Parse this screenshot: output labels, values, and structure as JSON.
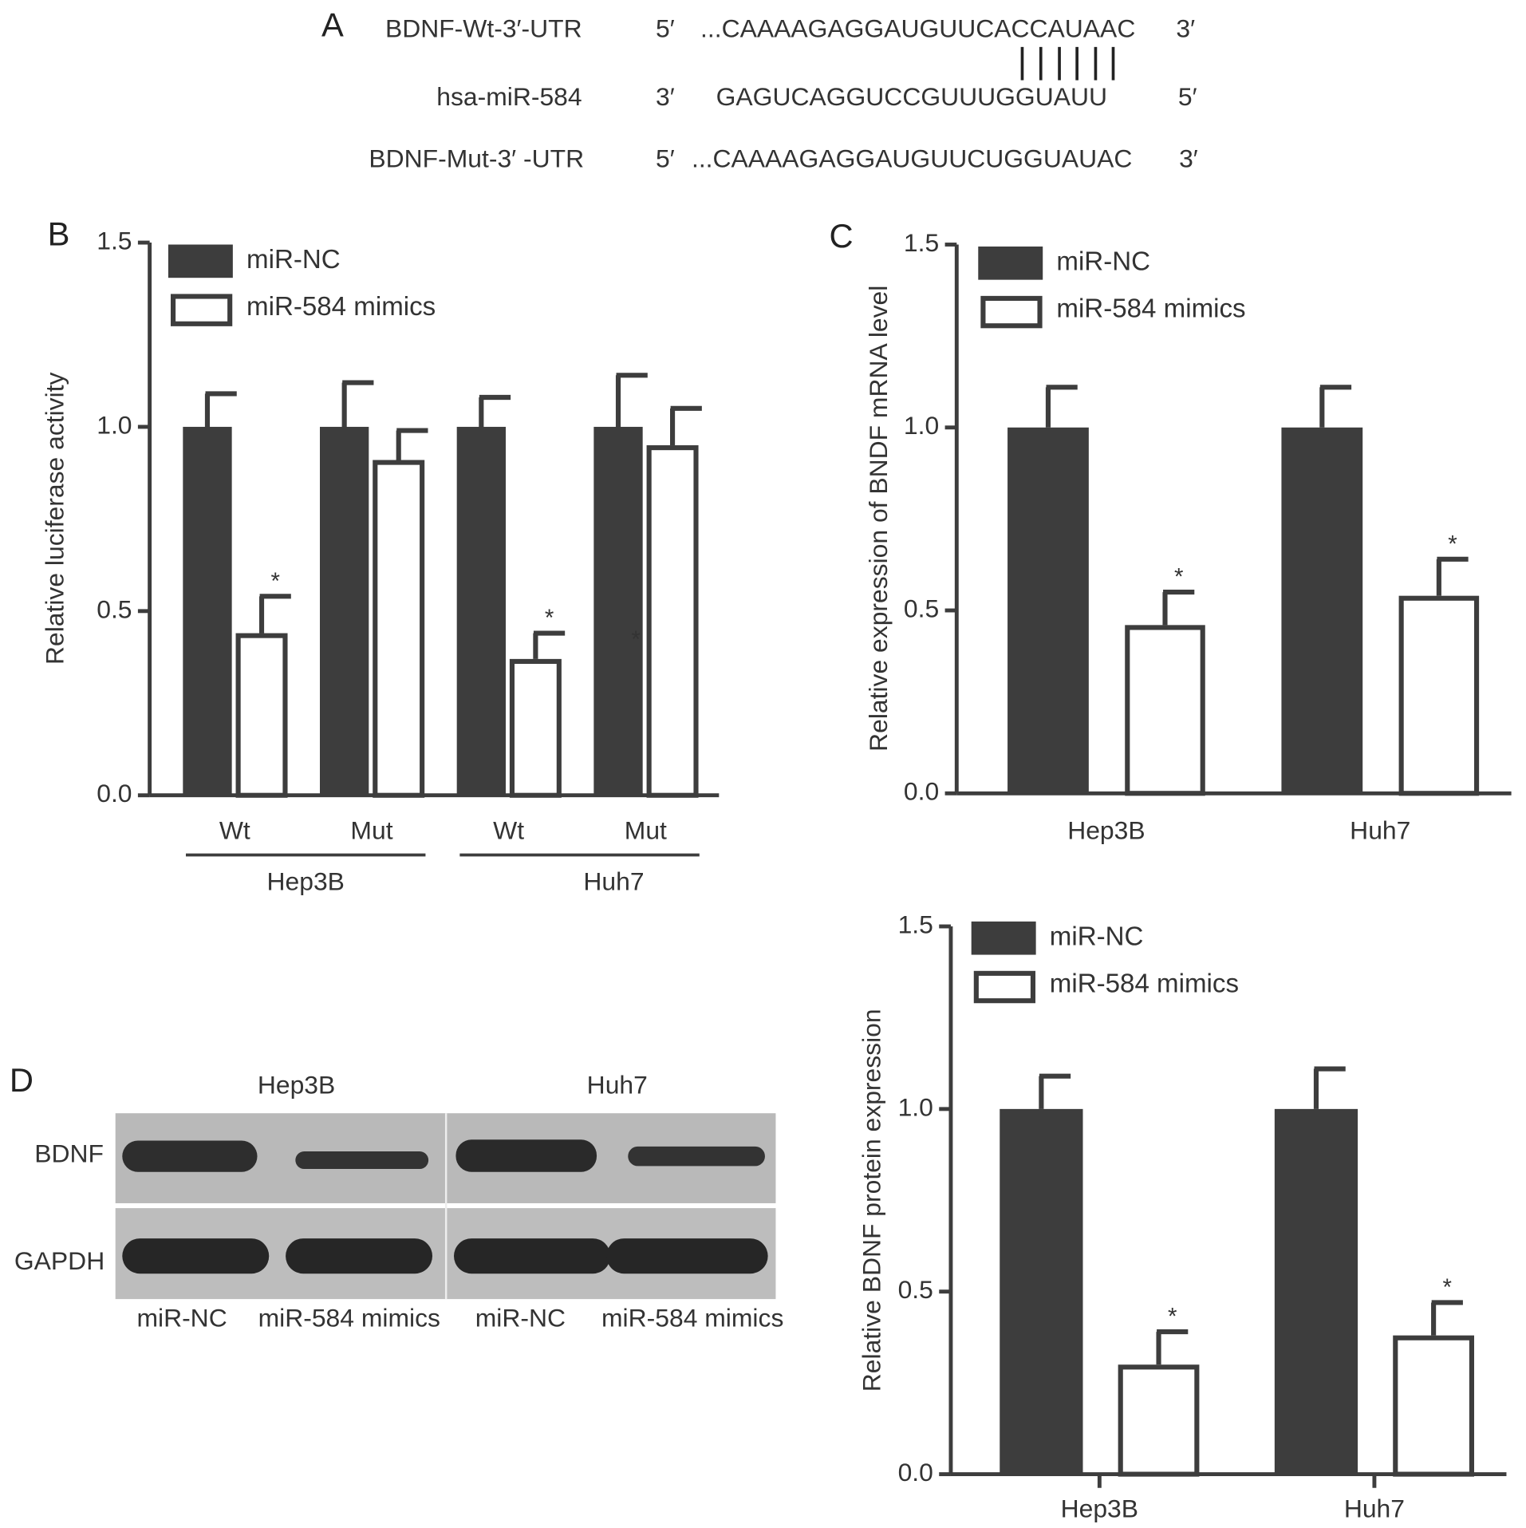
{
  "panel_a": {
    "label": "A",
    "rows": [
      {
        "name": "BDNF-Wt-3′-UTR",
        "left": "5′",
        "sequence": "...CAAAAGAGGAUGUUCACCAUAAC",
        "right": "3′"
      },
      {
        "name": "hsa-miR-584",
        "left": "3′",
        "sequence": "GAGUCAGGUCCGUUUGGUAUU",
        "right": "5′"
      },
      {
        "name": "BDNF-Mut-3′ -UTR",
        "left": "5′",
        "sequence": "...CAAAAGAGGAUGUUCUGGUAUAC",
        "right": "3′"
      }
    ]
  },
  "panel_d": {
    "label": "D",
    "cell_lines": [
      "Hep3B",
      "Huh7"
    ],
    "proteins": [
      "BDNF",
      "GAPDH"
    ],
    "lanes": [
      "miR-NC",
      "miR-584 mimics",
      "miR-NC",
      "miR-584 mimics"
    ]
  },
  "chart_data": [
    {
      "type": "bar",
      "panel": "B",
      "y_label": "Relative luciferase activity",
      "categories": [
        "Wt",
        "Mut",
        "Wt",
        "Mut"
      ],
      "groups": [
        "Hep3B",
        "Huh7"
      ],
      "series": [
        {
          "name": "miR-NC",
          "color": "#3d3d3d",
          "fill": "#3d3d3d",
          "values": [
            1,
            1,
            1,
            1
          ],
          "errors": [
            0.09,
            0.12,
            0.08,
            0.14
          ],
          "significance": [
            null,
            null,
            null,
            null
          ]
        },
        {
          "name": "miR-584 mimics",
          "color": "#3d3d3d",
          "fill": "#ffffff",
          "values": [
            0.44,
            0.91,
            0.37,
            0.95
          ],
          "errors": [
            0.1,
            0.08,
            0.07,
            0.1
          ],
          "significance": [
            "*",
            null,
            "*",
            null
          ]
        }
      ],
      "annotations": [
        "*"
      ],
      "ylim": [
        0,
        1.5
      ],
      "yticks": [
        {
          "value": 0,
          "label": "0.0"
        },
        0.5,
        {
          "value": 1,
          "label": "1.0"
        },
        1.5
      ]
    },
    {
      "type": "bar",
      "panel": "C",
      "y_label": "Relative expression of BNDF mRNA level",
      "categories": [
        "Hep3B",
        "Huh7"
      ],
      "series": [
        {
          "name": "miR-NC",
          "color": "#3d3d3d",
          "fill": "#3d3d3d",
          "values": [
            1,
            1
          ],
          "errors": [
            0.11,
            0.11
          ],
          "significance": [
            null,
            null
          ]
        },
        {
          "name": "miR-584 mimics",
          "color": "#3d3d3d",
          "fill": "#ffffff",
          "values": [
            0.46,
            0.54
          ],
          "errors": [
            0.09,
            0.1
          ],
          "significance": [
            "*",
            "*"
          ]
        }
      ],
      "ylim": [
        0,
        1.5
      ],
      "yticks": [
        {
          "value": 0,
          "label": "0.0"
        },
        0.5,
        {
          "value": 1,
          "label": "1.0"
        },
        1.5
      ]
    },
    {
      "type": "bar",
      "y_label": "Relative BDNF protein expression",
      "categories": [
        "Hep3B",
        "Huh7"
      ],
      "series": [
        {
          "name": "miR-NC",
          "color": "#3d3d3d",
          "fill": "#3d3d3d",
          "values": [
            1,
            1
          ],
          "errors": [
            0.09,
            0.11
          ],
          "significance": [
            null,
            null
          ]
        },
        {
          "name": "miR-584 mimics",
          "color": "#3d3d3d",
          "fill": "#ffffff",
          "values": [
            0.3,
            0.38
          ],
          "errors": [
            0.09,
            0.09
          ],
          "significance": [
            "*",
            "*"
          ]
        }
      ],
      "ylim": [
        0,
        1.5
      ],
      "yticks": [
        {
          "value": 0,
          "label": "0.0"
        },
        0.5,
        {
          "value": 1,
          "label": "1.0"
        },
        1.5
      ]
    }
  ]
}
